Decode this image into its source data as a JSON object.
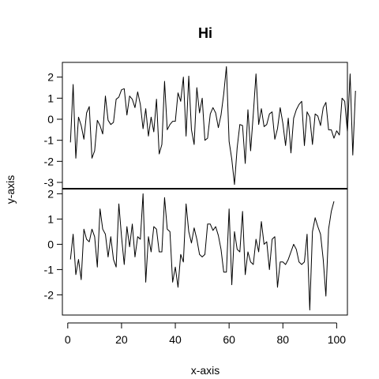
{
  "chart_data": {
    "type": "line",
    "title": "Hi",
    "xlabel": "x-axis",
    "ylabel": "y-axis",
    "xlim": [
      -2,
      104
    ],
    "x_ticks": [
      0,
      20,
      40,
      60,
      80,
      100
    ],
    "grid": false,
    "panels": [
      {
        "ylim": [
          -3.3,
          2.7
        ],
        "y_ticks": [
          -3,
          -2,
          -1,
          0,
          1,
          2
        ],
        "series": [
          {
            "x_start": 1,
            "values": [
              -1.1,
              1.65,
              -1.85,
              0.1,
              -0.3,
              -0.95,
              0.3,
              0.6,
              -1.85,
              -1.5,
              -0.05,
              -0.3,
              -0.7,
              1.1,
              -0.05,
              -0.25,
              -0.15,
              0.95,
              1.05,
              1.4,
              1.45,
              0.2,
              1.1,
              0.95,
              0.55,
              1.3,
              0.7,
              -0.45,
              0.5,
              -0.8,
              0.1,
              -0.6,
              0.95,
              -1.65,
              -1.2,
              1.8,
              -0.5,
              -0.25,
              -0.1,
              -0.1,
              1.25,
              0.85,
              2.0,
              -0.8,
              2.05,
              -0.5,
              -1.2,
              1.5,
              0.3,
              1.0,
              -1.0,
              -0.9,
              0.25,
              0.55,
              0.3,
              -0.4,
              0.2,
              1.2,
              2.5,
              -1.05,
              -1.9,
              -3.1,
              -1.35,
              -0.25,
              -0.3,
              -2.1,
              0.45,
              -1.5,
              0.25,
              2.15,
              -0.25,
              0.5,
              -0.35,
              -0.25,
              0.25,
              0.35,
              -0.95,
              -0.45,
              0.55,
              -0.2,
              -1.25,
              0.05,
              -1.6,
              0.05,
              0.45,
              0.7,
              0.85,
              -1.25,
              0.35,
              0.1,
              -1.2,
              0.25,
              0.15,
              -0.3,
              0.55,
              0.8,
              -0.5,
              -0.5,
              -0.9,
              -0.55,
              -0.75,
              1.0,
              0.85,
              -0.6,
              2.15,
              -1.7,
              1.35
            ]
          }
        ]
      },
      {
        "ylim": [
          -2.8,
          2.2
        ],
        "y_ticks": [
          -2,
          -1,
          0,
          1,
          2
        ],
        "series": [
          {
            "x_start": 1,
            "values": [
              -0.6,
              0.4,
              -1.2,
              -0.6,
              -1.4,
              0.6,
              0.2,
              0.1,
              0.6,
              0.3,
              -0.9,
              1.4,
              0.6,
              0.4,
              -0.5,
              0.3,
              -0.6,
              -0.9,
              1.6,
              0.3,
              -0.8,
              0.7,
              -0.1,
              0.8,
              -0.5,
              0.3,
              0.2,
              2.0,
              -1.5,
              0.3,
              -0.3,
              0.7,
              0.6,
              -0.3,
              -0.3,
              1.85,
              0.6,
              0.5,
              -1.5,
              -0.9,
              -1.7,
              -0.4,
              -0.7,
              1.6,
              0.5,
              0.05,
              0.65,
              0.2,
              -0.4,
              -0.5,
              -0.4,
              0.8,
              0.8,
              0.55,
              0.7,
              0.35,
              -0.2,
              -1.1,
              -1.1,
              1.4,
              -1.6,
              0.5,
              -0.2,
              -0.3,
              1.3,
              -1.2,
              -0.3,
              -0.7,
              -0.8,
              0.2,
              -0.3,
              0.9,
              0.0,
              0.1,
              -1.0,
              0.2,
              0.3,
              -1.7,
              -0.7,
              -0.7,
              -0.8,
              -0.6,
              -0.3,
              0.0,
              -0.2,
              -0.7,
              -0.8,
              -0.7,
              0.4,
              -2.6,
              0.5,
              1.05,
              0.7,
              0.4,
              -0.6,
              -2.05,
              0.6,
              1.3,
              1.7
            ]
          }
        ]
      }
    ]
  }
}
